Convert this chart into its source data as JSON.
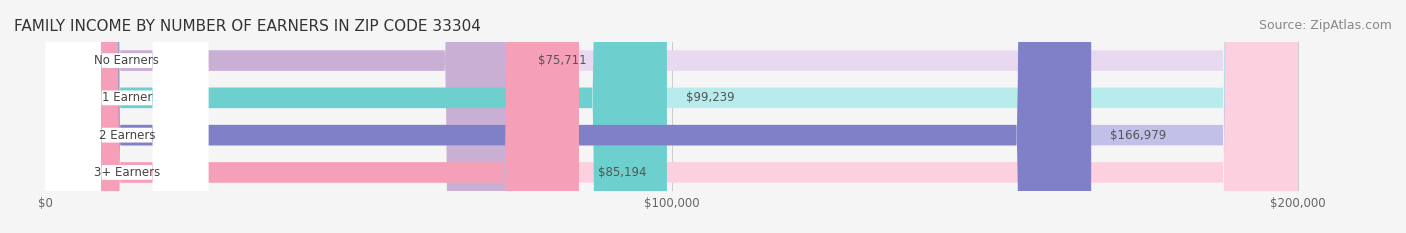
{
  "title": "FAMILY INCOME BY NUMBER OF EARNERS IN ZIP CODE 33304",
  "source": "Source: ZipAtlas.com",
  "categories": [
    "No Earners",
    "1 Earner",
    "2 Earners",
    "3+ Earners"
  ],
  "values": [
    75711,
    99239,
    166979,
    85194
  ],
  "value_labels": [
    "$75,711",
    "$99,239",
    "$166,979",
    "$85,194"
  ],
  "bar_colors": [
    "#c9afd4",
    "#6ecfcf",
    "#8080c8",
    "#f5a0b8"
  ],
  "bar_bg_colors": [
    "#e8d8f0",
    "#b8ecec",
    "#c0c0e8",
    "#fcd0de"
  ],
  "label_colors": [
    "#9070a8",
    "#40b0b0",
    "#6060b0",
    "#e87898"
  ],
  "xlim": [
    0,
    200000
  ],
  "xtick_values": [
    0,
    100000,
    200000
  ],
  "xtick_labels": [
    "$0",
    "$100,000",
    "$200,000"
  ],
  "title_fontsize": 11,
  "source_fontsize": 9,
  "bar_height": 0.55,
  "background_color": "#f5f5f5",
  "bar_bg_alpha": 1.0
}
